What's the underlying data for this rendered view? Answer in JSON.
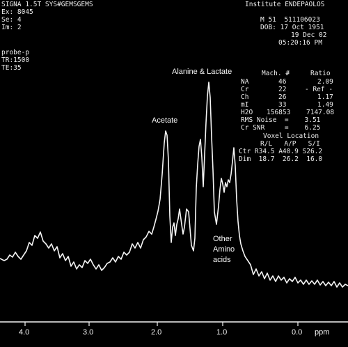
{
  "header": {
    "left_lines": [
      "SIGNA 1.5T SYS#GEMSGEMS",
      "Ex: 8045",
      "Se: 4",
      "Im: 2"
    ],
    "institution": "Institute ENDEPAOLOS",
    "patient_line": "M 51  511106023",
    "dob_line": "DOB: 17 Oct 1951",
    "date_line": "19 Dec 02",
    "time_line": "05:20:16 PM"
  },
  "acquisition": {
    "coil": "probe-p",
    "tr": "TR:1500",
    "te": "TE:35"
  },
  "metabolite_table": {
    "header": [
      "Mach. #",
      "Ratio"
    ],
    "rows": [
      {
        "name": "NA",
        "value": "46",
        "ratio": "2.09"
      },
      {
        "name": "Cr",
        "value": "22",
        "ratio": "- Ref -"
      },
      {
        "name": "Ch",
        "value": "26",
        "ratio": "1.17"
      },
      {
        "name": "mI",
        "value": "33",
        "ratio": "1.49"
      },
      {
        "name": "H2O",
        "value": "156853",
        "ratio": "7147.08"
      }
    ],
    "rms_noise": "RMS Noise  =    3.51",
    "cr_snr": "Cr SNR     =    6.25"
  },
  "voxel": {
    "title": "Voxel Location",
    "header": "R/L   A/P   S/I",
    "ctr": "Ctr R34.5 A40.9 S26.2",
    "dim": "Dim  18.7  26.2  16.0"
  },
  "annotations": {
    "alanine_lactate": "Alanine & Lactate",
    "acetate": "Acetate",
    "other_amino": [
      "Other",
      "Amino",
      "acids"
    ]
  },
  "axis": {
    "unit": "ppm",
    "ticks": [
      "4.0",
      "3.0",
      "2.0",
      "1.0",
      "0.0"
    ]
  },
  "colors": {
    "background": "#000000",
    "trace": "#f4f4f4",
    "text": "#ededed"
  }
}
